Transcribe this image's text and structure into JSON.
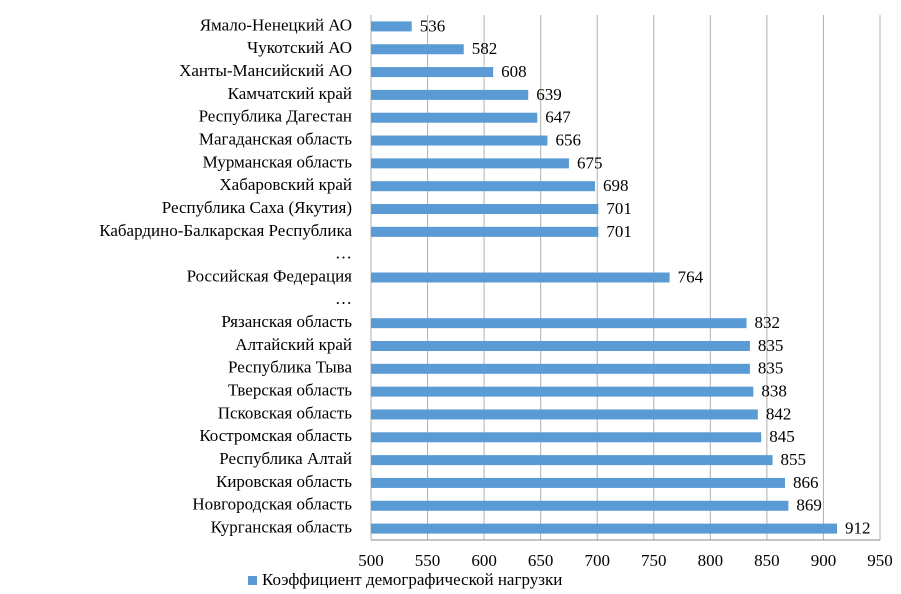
{
  "chart_data": {
    "type": "bar",
    "orientation": "horizontal",
    "categories": [
      "Ямало-Ненецкий АО",
      "Чукотский АО",
      "Ханты-Мансийский АО",
      "Камчатский край",
      "Республика Дагестан",
      "Магаданская область",
      "Мурманская область",
      "Хабаровский край",
      "Республика Саха (Якутия)",
      "Кабардино-Балкарская Республика",
      "…",
      "Российская Федерация",
      "…",
      "Рязанская область",
      "Алтайский край",
      "Республика Тыва",
      "Тверская область",
      "Псковская область",
      "Костромская область",
      "Республика Алтай",
      "Кировская область",
      "Новгородская область",
      "Курганская область"
    ],
    "series": [
      {
        "name": "Коэффициент демографической нагрузки",
        "color": "#5b9bd5",
        "values": [
          536,
          582,
          608,
          639,
          647,
          656,
          675,
          698,
          701,
          701,
          null,
          764,
          null,
          832,
          835,
          835,
          838,
          842,
          845,
          855,
          866,
          869,
          912
        ]
      }
    ],
    "xlim": [
      500,
      950
    ],
    "xticks": [
      500,
      550,
      600,
      650,
      700,
      750,
      800,
      850,
      900,
      950
    ],
    "grid": true,
    "legend": "bottom"
  }
}
